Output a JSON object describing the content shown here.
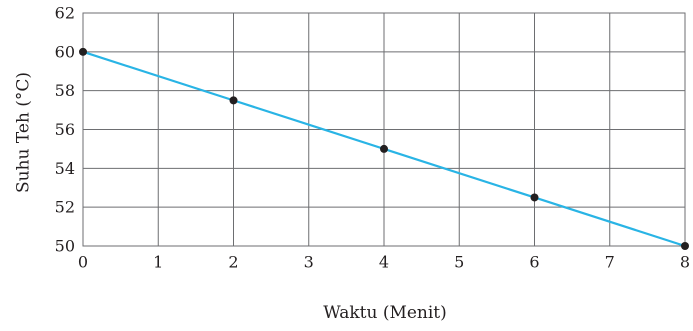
{
  "chart_data": {
    "type": "line",
    "xlabel": "Waktu (Menit)",
    "ylabel": "Suhu Teh (°C)",
    "xlim": [
      0,
      8
    ],
    "ylim": [
      50,
      62
    ],
    "x_ticks": [
      "0",
      "1",
      "2",
      "3",
      "4",
      "5",
      "6",
      "7",
      "8"
    ],
    "y_ticks": [
      "50",
      "52",
      "54",
      "56",
      "58",
      "60",
      "62"
    ],
    "grid": true,
    "series": [
      {
        "x": [
          0,
          2,
          4,
          6,
          8
        ],
        "y": [
          60,
          57.5,
          55,
          52.5,
          50
        ],
        "line_color": "#29b4e5",
        "marker_color": "#231f20"
      }
    ]
  }
}
